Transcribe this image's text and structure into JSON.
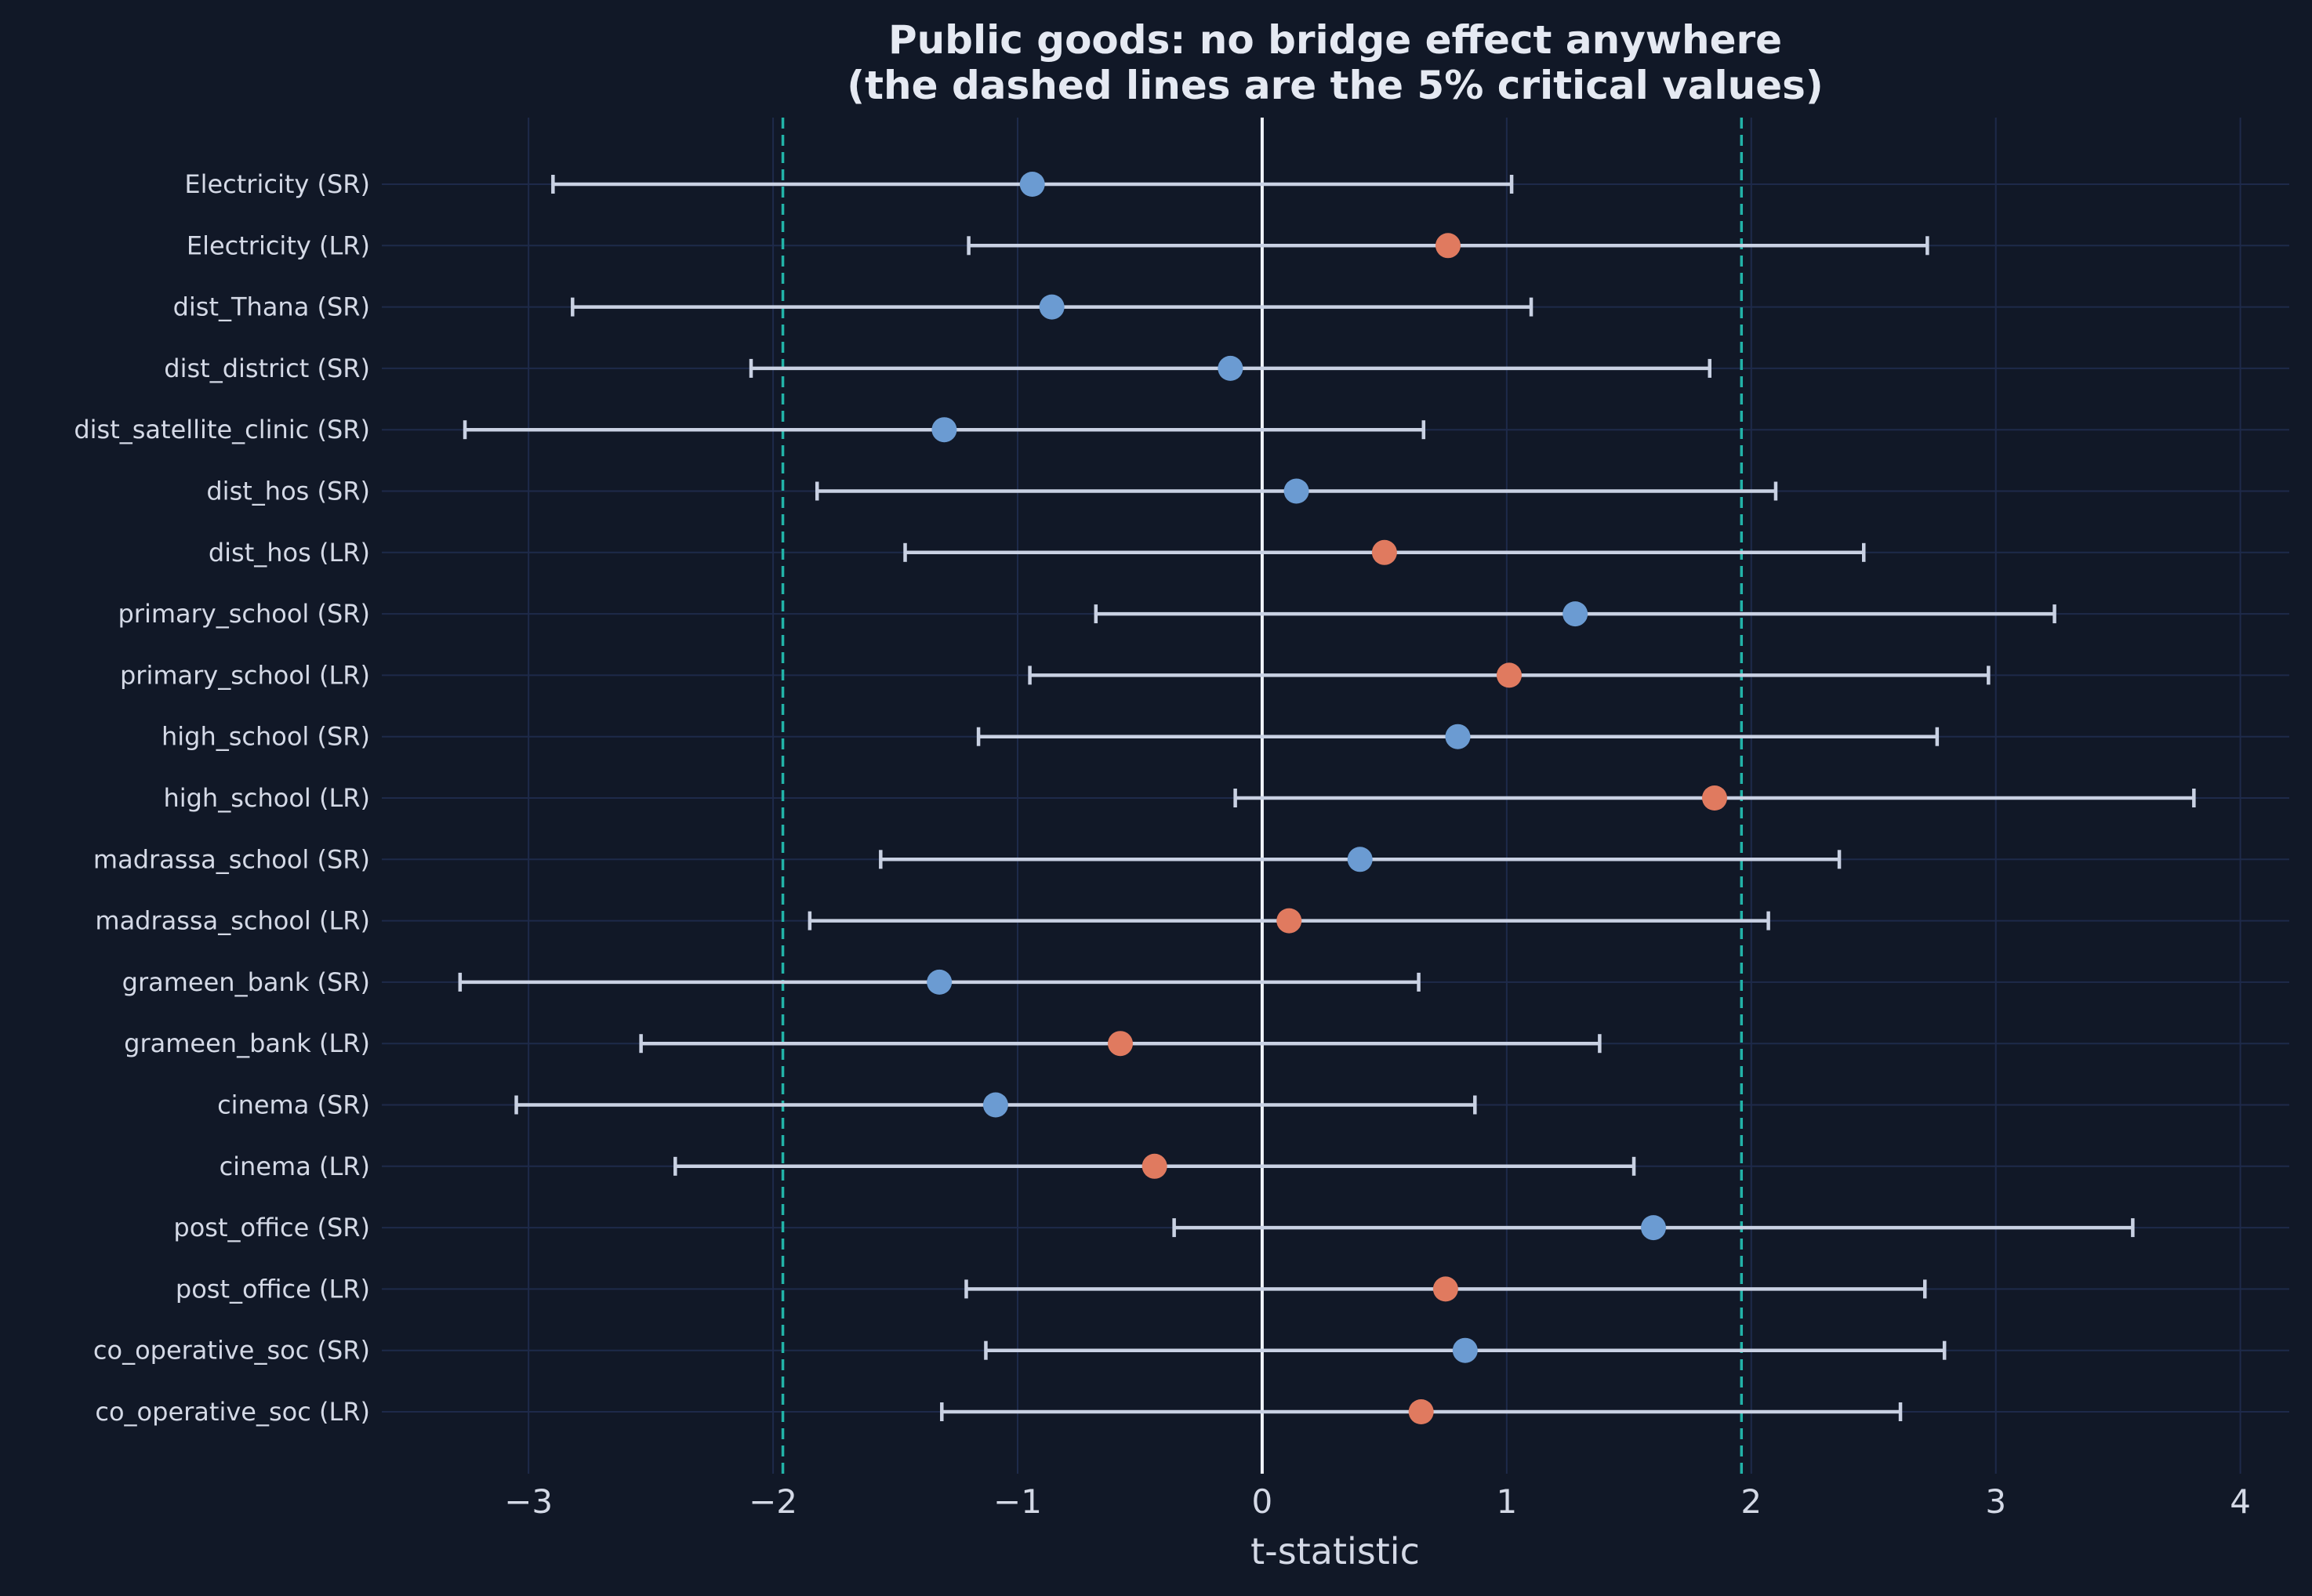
{
  "chart_data": {
    "type": "errorbar",
    "title": "Public goods: no bridge effect anywhere",
    "subtitle": "(the dashed lines are the 5% critical values)",
    "xlabel": "t-statistic",
    "ylabel": "",
    "xlim": [
      -3.6,
      4.2
    ],
    "xticks": [
      -3,
      -2,
      -1,
      0,
      1,
      2,
      3,
      4
    ],
    "xtick_labels": [
      "−3",
      "−2",
      "−1",
      "0",
      "1",
      "2",
      "3",
      "4"
    ],
    "critical_values": [
      -1.96,
      1.96
    ],
    "zero_line": 0,
    "grid": true,
    "legend": null,
    "colors": {
      "background": "#111827",
      "grid": "#1e2a4a",
      "errorbar": "#c9d1e3",
      "zero_line": "#f0f3fa",
      "critical_line": "#22b3a8",
      "SR": "#6b9bd2",
      "LR": "#e07a5f",
      "text": "#d4d9e6"
    },
    "rows": [
      {
        "label": "Electricity (SR)",
        "group": "SR",
        "t": -0.94,
        "lo": -2.9,
        "hi": 1.02
      },
      {
        "label": "Electricity (LR)",
        "group": "LR",
        "t": 0.76,
        "lo": -1.2,
        "hi": 2.72
      },
      {
        "label": "dist_Thana (SR)",
        "group": "SR",
        "t": -0.86,
        "lo": -2.82,
        "hi": 1.1
      },
      {
        "label": "dist_district (SR)",
        "group": "SR",
        "t": -0.13,
        "lo": -2.09,
        "hi": 1.83
      },
      {
        "label": "dist_satellite_clinic (SR)",
        "group": "SR",
        "t": -1.3,
        "lo": -3.26,
        "hi": 0.66
      },
      {
        "label": "dist_hos (SR)",
        "group": "SR",
        "t": 0.14,
        "lo": -1.82,
        "hi": 2.1
      },
      {
        "label": "dist_hos (LR)",
        "group": "LR",
        "t": 0.5,
        "lo": -1.46,
        "hi": 2.46
      },
      {
        "label": "primary_school (SR)",
        "group": "SR",
        "t": 1.28,
        "lo": -0.68,
        "hi": 3.24
      },
      {
        "label": "primary_school (LR)",
        "group": "LR",
        "t": 1.01,
        "lo": -0.95,
        "hi": 2.97
      },
      {
        "label": "high_school (SR)",
        "group": "SR",
        "t": 0.8,
        "lo": -1.16,
        "hi": 2.76
      },
      {
        "label": "high_school (LR)",
        "group": "LR",
        "t": 1.85,
        "lo": -0.11,
        "hi": 3.81
      },
      {
        "label": "madrassa_school (SR)",
        "group": "SR",
        "t": 0.4,
        "lo": -1.56,
        "hi": 2.36
      },
      {
        "label": "madrassa_school (LR)",
        "group": "LR",
        "t": 0.11,
        "lo": -1.85,
        "hi": 2.07
      },
      {
        "label": "grameen_bank (SR)",
        "group": "SR",
        "t": -1.32,
        "lo": -3.28,
        "hi": 0.64
      },
      {
        "label": "grameen_bank (LR)",
        "group": "LR",
        "t": -0.58,
        "lo": -2.54,
        "hi": 1.38
      },
      {
        "label": "cinema (SR)",
        "group": "SR",
        "t": -1.09,
        "lo": -3.05,
        "hi": 0.87
      },
      {
        "label": "cinema (LR)",
        "group": "LR",
        "t": -0.44,
        "lo": -2.4,
        "hi": 1.52
      },
      {
        "label": "post_office (SR)",
        "group": "SR",
        "t": 1.6,
        "lo": -0.36,
        "hi": 3.56
      },
      {
        "label": "post_office (LR)",
        "group": "LR",
        "t": 0.75,
        "lo": -1.21,
        "hi": 2.71
      },
      {
        "label": "co_operative_soc (SR)",
        "group": "SR",
        "t": 0.83,
        "lo": -1.13,
        "hi": 2.79
      },
      {
        "label": "co_operative_soc (LR)",
        "group": "LR",
        "t": 0.65,
        "lo": -1.31,
        "hi": 2.61
      }
    ]
  }
}
